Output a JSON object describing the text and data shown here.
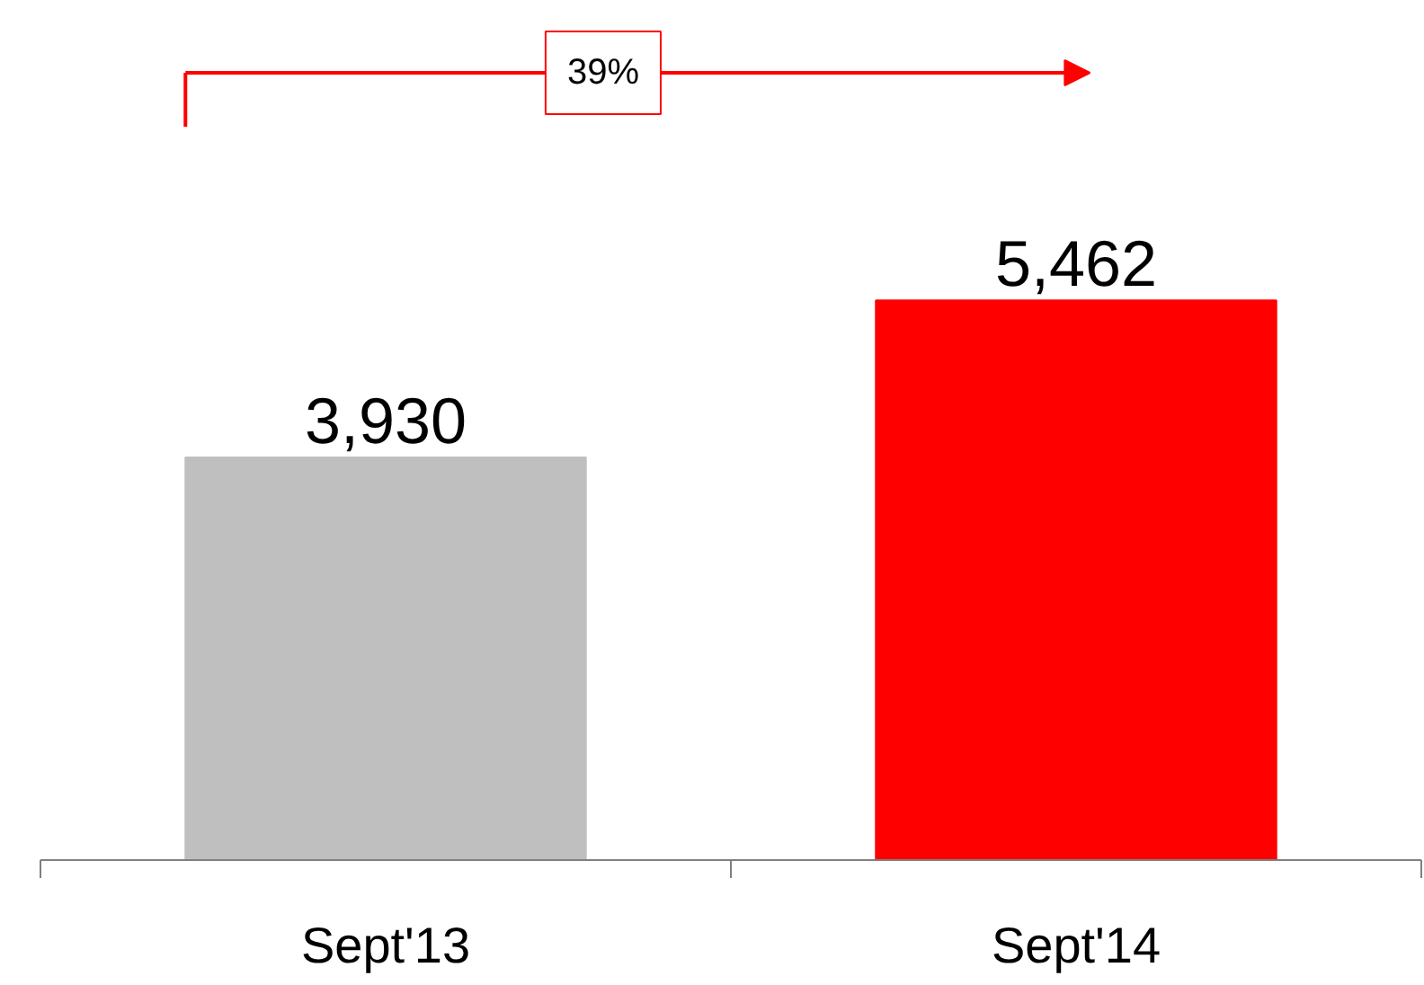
{
  "chart_data": {
    "type": "bar",
    "categories": [
      "Sept'13",
      "Sept'14"
    ],
    "values": [
      3930,
      5462
    ],
    "colors": [
      "#bfbfbf",
      "#ff0000"
    ],
    "value_labels": [
      "3,930",
      "5,462"
    ],
    "annotations": [
      "39%"
    ],
    "grid": false
  }
}
